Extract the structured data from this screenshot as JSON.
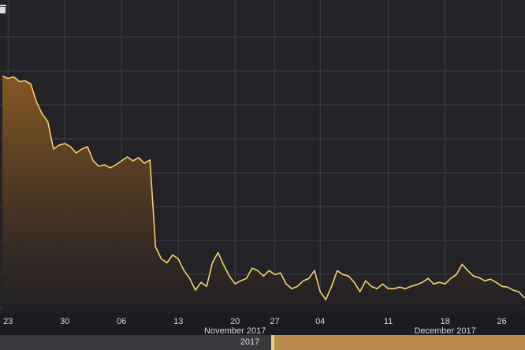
{
  "chart_data": {
    "type": "area",
    "categories": [
      null,
      "23",
      null,
      null,
      null,
      null,
      null,
      null,
      null,
      null,
      null,
      "30",
      null,
      null,
      null,
      null,
      null,
      null,
      null,
      null,
      null,
      "06",
      null,
      null,
      null,
      null,
      null,
      null,
      null,
      null,
      null,
      "13",
      null,
      null,
      null,
      null,
      null,
      null,
      null,
      null,
      null,
      "20",
      null,
      null,
      null,
      null,
      null,
      null,
      "27",
      null,
      null,
      null,
      null,
      null,
      null,
      null,
      "04",
      null,
      null,
      null,
      null,
      null,
      null,
      null,
      null,
      null,
      null,
      null,
      "11",
      null,
      null,
      null,
      null,
      null,
      null,
      null,
      null,
      null,
      "18",
      null,
      null,
      null,
      null,
      null,
      null,
      null,
      null,
      null,
      "26",
      null,
      null,
      null,
      null
    ],
    "values": [
      303,
      300,
      302,
      296,
      297,
      293,
      270,
      255,
      245,
      210,
      215,
      217,
      213,
      205,
      210,
      213,
      195,
      188,
      190,
      186,
      190,
      195,
      200,
      195,
      199,
      192,
      196,
      85,
      70,
      65,
      75,
      70,
      55,
      45,
      30,
      40,
      35,
      65,
      78,
      62,
      48,
      38,
      42,
      45,
      58,
      55,
      48,
      55,
      50,
      52,
      38,
      32,
      35,
      42,
      45,
      55,
      28,
      18,
      35,
      55,
      50,
      48,
      40,
      28,
      42,
      35,
      32,
      38,
      32,
      32,
      34,
      32,
      35,
      37,
      40,
      45,
      38,
      40,
      38,
      45,
      50,
      63,
      55,
      48,
      46,
      42,
      44,
      40,
      35,
      34,
      30,
      28,
      20
    ],
    "color": "#f3d06a",
    "ylim": [
      0,
      400
    ],
    "month_labels": [
      "November 2017",
      "December 2017"
    ],
    "navigator_label": "2017"
  }
}
